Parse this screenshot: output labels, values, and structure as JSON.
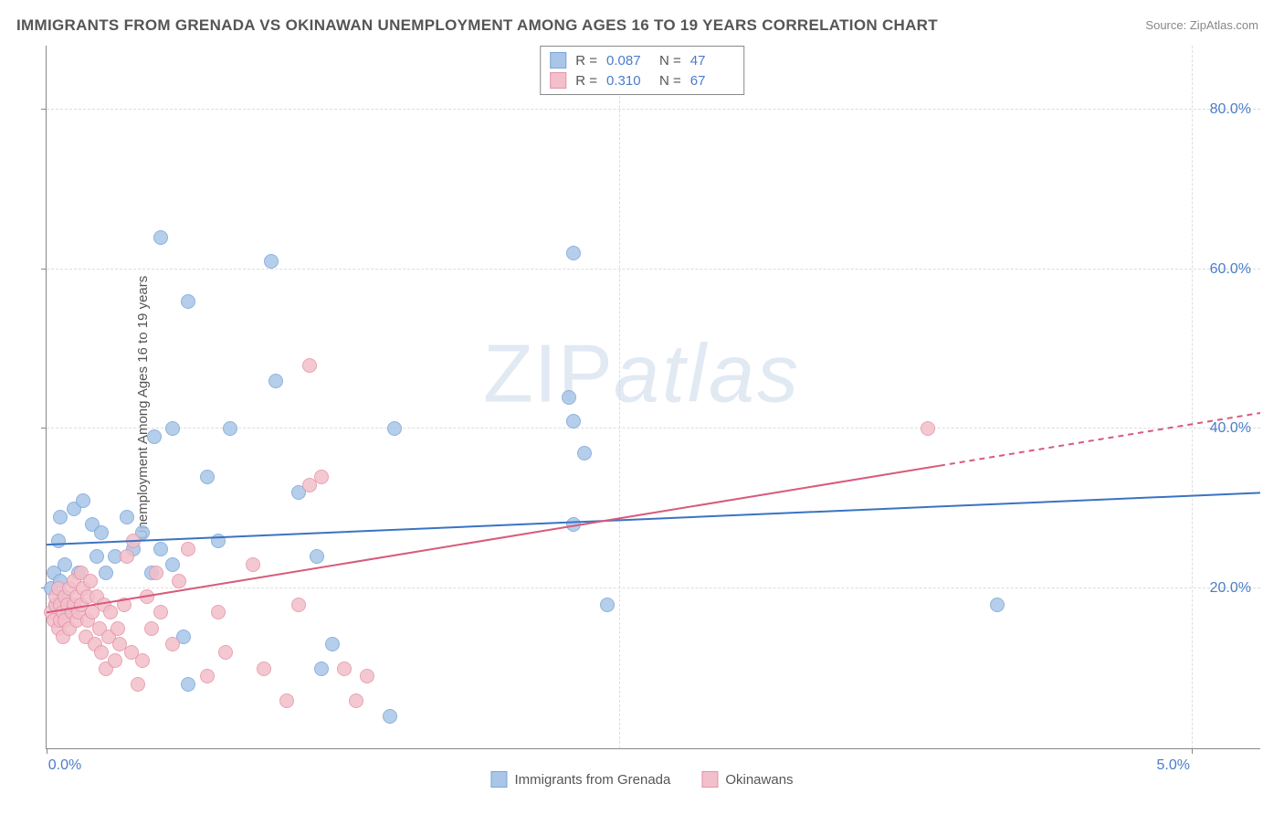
{
  "title": "IMMIGRANTS FROM GRENADA VS OKINAWAN UNEMPLOYMENT AMONG AGES 16 TO 19 YEARS CORRELATION CHART",
  "source_label": "Source:",
  "source_name": "ZipAtlas.com",
  "ylabel": "Unemployment Among Ages 16 to 19 years",
  "watermark_a": "ZIP",
  "watermark_b": "atlas",
  "chart": {
    "type": "scatter",
    "background_color": "#ffffff",
    "grid_color": "#dddddd",
    "axis_color": "#888888",
    "tick_label_color": "#4a7ccc",
    "xlim": [
      0,
      5.3
    ],
    "ylim": [
      0,
      88
    ],
    "xticks": [
      0,
      5
    ],
    "xtick_labels": [
      "0.0%",
      "5.0%"
    ],
    "yticks": [
      20,
      40,
      60,
      80
    ],
    "ytick_labels": [
      "20.0%",
      "40.0%",
      "60.0%",
      "80.0%"
    ],
    "x_gridlines_at": [
      2.5,
      5.0
    ],
    "marker_radius": 8,
    "marker_border_width": 1.5,
    "marker_fill_opacity": 0.35
  },
  "series": [
    {
      "id": "grenada",
      "label": "Immigrants from Grenada",
      "color_border": "#7aa6d8",
      "color_fill": "#a9c6e8",
      "R": "0.087",
      "N": "47",
      "trend": {
        "x1": 0,
        "y1": 25.5,
        "x2": 5.3,
        "y2": 32.0,
        "color": "#3a73c2",
        "width": 2,
        "dash_after_x": null
      },
      "points": [
        [
          0.02,
          20
        ],
        [
          0.03,
          22
        ],
        [
          0.04,
          18
        ],
        [
          0.05,
          26
        ],
        [
          0.06,
          21
        ],
        [
          0.07,
          19
        ],
        [
          0.08,
          23
        ],
        [
          0.09,
          17
        ],
        [
          0.06,
          29
        ],
        [
          0.12,
          30
        ],
        [
          0.14,
          22
        ],
        [
          0.16,
          31
        ],
        [
          0.2,
          28
        ],
        [
          0.22,
          24
        ],
        [
          0.24,
          27
        ],
        [
          0.26,
          22
        ],
        [
          0.3,
          24
        ],
        [
          0.35,
          29
        ],
        [
          0.38,
          25
        ],
        [
          0.42,
          27
        ],
        [
          0.46,
          22
        ],
        [
          0.5,
          25
        ],
        [
          0.55,
          23
        ],
        [
          0.6,
          14
        ],
        [
          0.62,
          8
        ],
        [
          0.7,
          34
        ],
        [
          0.75,
          26
        ],
        [
          0.8,
          40
        ],
        [
          0.55,
          40
        ],
        [
          0.47,
          39
        ],
        [
          0.98,
          61
        ],
        [
          1.0,
          46
        ],
        [
          0.62,
          56
        ],
        [
          0.5,
          64
        ],
        [
          1.1,
          32
        ],
        [
          1.18,
          24
        ],
        [
          1.2,
          10
        ],
        [
          1.25,
          13
        ],
        [
          1.5,
          4
        ],
        [
          1.52,
          40
        ],
        [
          2.3,
          41
        ],
        [
          2.35,
          37
        ],
        [
          2.3,
          28
        ],
        [
          2.45,
          18
        ],
        [
          4.15,
          18
        ],
        [
          2.28,
          44
        ],
        [
          2.3,
          62
        ]
      ]
    },
    {
      "id": "okinawans",
      "label": "Okinawans",
      "color_border": "#e594a8",
      "color_fill": "#f3bfca",
      "R": "0.310",
      "N": "67",
      "trend": {
        "x1": 0,
        "y1": 17.0,
        "x2": 5.3,
        "y2": 42.0,
        "color": "#d85a7b",
        "width": 2,
        "dash_after_x": 3.9
      },
      "points": [
        [
          0.02,
          17
        ],
        [
          0.03,
          16
        ],
        [
          0.04,
          18
        ],
        [
          0.04,
          19
        ],
        [
          0.05,
          15
        ],
        [
          0.05,
          20
        ],
        [
          0.06,
          16
        ],
        [
          0.06,
          18
        ],
        [
          0.07,
          14
        ],
        [
          0.07,
          17
        ],
        [
          0.08,
          19
        ],
        [
          0.08,
          16
        ],
        [
          0.09,
          18
        ],
        [
          0.1,
          15
        ],
        [
          0.1,
          20
        ],
        [
          0.11,
          17
        ],
        [
          0.12,
          21
        ],
        [
          0.12,
          18
        ],
        [
          0.13,
          16
        ],
        [
          0.13,
          19
        ],
        [
          0.14,
          17
        ],
        [
          0.15,
          22
        ],
        [
          0.15,
          18
        ],
        [
          0.16,
          20
        ],
        [
          0.17,
          14
        ],
        [
          0.18,
          19
        ],
        [
          0.18,
          16
        ],
        [
          0.19,
          21
        ],
        [
          0.2,
          17
        ],
        [
          0.21,
          13
        ],
        [
          0.22,
          19
        ],
        [
          0.23,
          15
        ],
        [
          0.24,
          12
        ],
        [
          0.25,
          18
        ],
        [
          0.26,
          10
        ],
        [
          0.27,
          14
        ],
        [
          0.28,
          17
        ],
        [
          0.3,
          11
        ],
        [
          0.31,
          15
        ],
        [
          0.32,
          13
        ],
        [
          0.34,
          18
        ],
        [
          0.35,
          24
        ],
        [
          0.37,
          12
        ],
        [
          0.38,
          26
        ],
        [
          0.4,
          8
        ],
        [
          0.42,
          11
        ],
        [
          0.44,
          19
        ],
        [
          0.46,
          15
        ],
        [
          0.48,
          22
        ],
        [
          0.5,
          17
        ],
        [
          0.55,
          13
        ],
        [
          0.58,
          21
        ],
        [
          0.62,
          25
        ],
        [
          0.7,
          9
        ],
        [
          0.75,
          17
        ],
        [
          0.78,
          12
        ],
        [
          0.9,
          23
        ],
        [
          0.95,
          10
        ],
        [
          1.05,
          6
        ],
        [
          1.1,
          18
        ],
        [
          1.15,
          33
        ],
        [
          1.15,
          48
        ],
        [
          1.2,
          34
        ],
        [
          1.3,
          10
        ],
        [
          1.35,
          6
        ],
        [
          1.4,
          9
        ],
        [
          3.85,
          40
        ]
      ]
    }
  ],
  "legend_top": {
    "r_label": "R =",
    "n_label": "N ="
  }
}
